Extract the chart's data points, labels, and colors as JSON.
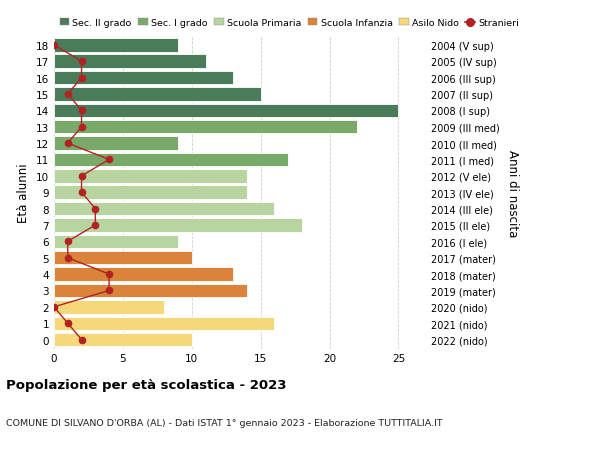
{
  "ages": [
    18,
    17,
    16,
    15,
    14,
    13,
    12,
    11,
    10,
    9,
    8,
    7,
    6,
    5,
    4,
    3,
    2,
    1,
    0
  ],
  "right_labels": [
    "2004 (V sup)",
    "2005 (IV sup)",
    "2006 (III sup)",
    "2007 (II sup)",
    "2008 (I sup)",
    "2009 (III med)",
    "2010 (II med)",
    "2011 (I med)",
    "2012 (V ele)",
    "2013 (IV ele)",
    "2014 (III ele)",
    "2015 (II ele)",
    "2016 (I ele)",
    "2017 (mater)",
    "2018 (mater)",
    "2019 (mater)",
    "2020 (nido)",
    "2021 (nido)",
    "2022 (nido)"
  ],
  "bar_values": [
    9,
    11,
    13,
    15,
    25,
    22,
    9,
    17,
    14,
    14,
    16,
    18,
    9,
    10,
    13,
    14,
    8,
    16,
    10
  ],
  "bar_colors": [
    "#4a7c59",
    "#4a7c59",
    "#4a7c59",
    "#4a7c59",
    "#4a7c59",
    "#7aaa6a",
    "#7aaa6a",
    "#7aaa6a",
    "#b8d4a0",
    "#b8d4a0",
    "#b8d4a0",
    "#b8d4a0",
    "#b8d4a0",
    "#d9843a",
    "#d9843a",
    "#d9843a",
    "#f5d87a",
    "#f5d87a",
    "#f5d87a"
  ],
  "stranieri_values": [
    0,
    2,
    2,
    1,
    2,
    2,
    1,
    4,
    2,
    2,
    3,
    3,
    1,
    1,
    4,
    4,
    0,
    1,
    2
  ],
  "legend_labels": [
    "Sec. II grado",
    "Sec. I grado",
    "Scuola Primaria",
    "Scuola Infanzia",
    "Asilo Nido",
    "Stranieri"
  ],
  "legend_colors": [
    "#4a7c59",
    "#7aaa6a",
    "#b8d4a0",
    "#d9843a",
    "#f5d87a",
    "#b22222"
  ],
  "ylabel_left": "Età alunni",
  "ylabel_right": "Anni di nascita",
  "xlim": [
    0,
    27
  ],
  "ylim_low": -0.55,
  "ylim_high": 18.55,
  "title": "Popolazione per età scolastica - 2023",
  "subtitle": "COMUNE DI SILVANO D'ORBA (AL) - Dati ISTAT 1° gennaio 2023 - Elaborazione TUTTITALIA.IT",
  "background_color": "#ffffff",
  "grid_color": "#cccccc",
  "bar_edge_color": "#ffffff",
  "xticks": [
    0,
    5,
    10,
    15,
    20,
    25
  ]
}
